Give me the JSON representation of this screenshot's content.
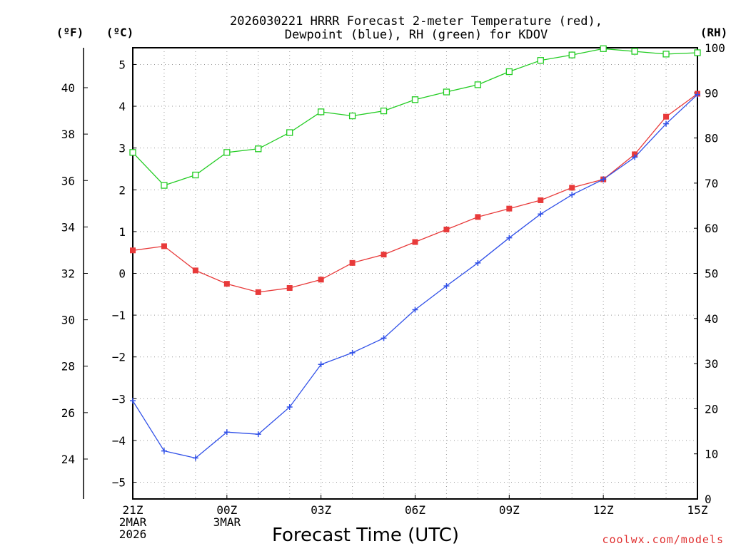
{
  "chart_data": {
    "type": "line",
    "title_line1": "2026030221 HRRR Forecast 2-meter Temperature (red),",
    "title_line2": "Dewpoint (blue), RH (green) for KDOV",
    "unit_f": "(ºF)",
    "unit_c": "(ºC)",
    "unit_rh": "(RH)",
    "xlabel": "Forecast Time (UTC)",
    "credit": "coolwx.com/models",
    "xlim": [
      0,
      18
    ],
    "ylim_c": [
      -5.4,
      5.4
    ],
    "ylim_rh": [
      0,
      100
    ],
    "x_ticks": [
      {
        "x": 0,
        "lines": [
          "21Z",
          "2MAR",
          "2026"
        ]
      },
      {
        "x": 3,
        "lines": [
          "00Z",
          "3MAR"
        ]
      },
      {
        "x": 6,
        "lines": [
          "03Z"
        ]
      },
      {
        "x": 9,
        "lines": [
          "06Z"
        ]
      },
      {
        "x": 12,
        "lines": [
          "09Z"
        ]
      },
      {
        "x": 15,
        "lines": [
          "12Z"
        ]
      },
      {
        "x": 18,
        "lines": [
          "15Z"
        ]
      }
    ],
    "c_ticks": [
      5,
      4,
      3,
      2,
      1,
      0,
      -1,
      -2,
      -3,
      -4,
      -5
    ],
    "c_tick_labels": [
      "5",
      "4",
      "3",
      "2",
      "1",
      "0",
      "−1",
      "−2",
      "−3",
      "−4",
      "−5"
    ],
    "f_ticks": [
      40,
      38,
      36,
      34,
      32,
      30,
      28,
      26,
      24
    ],
    "f_tick_labels": [
      "40",
      "38",
      "36",
      "34",
      "32",
      "30",
      "28",
      "26",
      "24"
    ],
    "rh_ticks": [
      100,
      90,
      80,
      70,
      60,
      50,
      40,
      30,
      20,
      10,
      0
    ],
    "rh_tick_labels": [
      "100",
      "90",
      "80",
      "70",
      "60",
      "50",
      "40",
      "30",
      "20",
      "10",
      "0"
    ],
    "series": [
      {
        "name": "2-meter Temperature",
        "axis": "c",
        "color": "#e83a3a",
        "marker": "filled-square",
        "x": [
          0,
          1,
          2,
          3,
          4,
          5,
          6,
          7,
          8,
          9,
          10,
          11,
          12,
          13,
          14,
          15,
          16,
          17,
          18
        ],
        "values": [
          0.55,
          0.65,
          0.07,
          -0.25,
          -0.45,
          -0.35,
          -0.15,
          0.25,
          0.45,
          0.75,
          1.05,
          1.35,
          1.55,
          1.75,
          2.05,
          2.25,
          2.85,
          3.75,
          4.3
        ]
      },
      {
        "name": "Dewpoint",
        "axis": "c",
        "color": "#3050e8",
        "marker": "plus",
        "x": [
          0,
          1,
          2,
          3,
          4,
          5,
          6,
          7,
          8,
          9,
          10,
          11,
          12,
          13,
          14,
          15,
          16,
          17,
          18
        ],
        "values": [
          -3.05,
          -4.25,
          -4.42,
          -3.8,
          -3.85,
          -3.2,
          -2.18,
          -1.9,
          -1.55,
          -0.87,
          -0.3,
          0.25,
          0.85,
          1.42,
          1.88,
          2.25,
          2.78,
          3.58,
          4.28
        ]
      },
      {
        "name": "RH",
        "axis": "rh",
        "color": "#22cc22",
        "marker": "open-square",
        "x": [
          0,
          1,
          2,
          3,
          4,
          5,
          6,
          7,
          8,
          9,
          10,
          11,
          12,
          13,
          14,
          15,
          16,
          17,
          18
        ],
        "values": [
          76.8,
          69.5,
          71.8,
          76.8,
          77.6,
          81.2,
          85.8,
          84.9,
          86.0,
          88.5,
          90.2,
          91.8,
          94.7,
          97.2,
          98.4,
          99.8,
          99.2,
          98.6,
          98.9
        ]
      }
    ]
  }
}
